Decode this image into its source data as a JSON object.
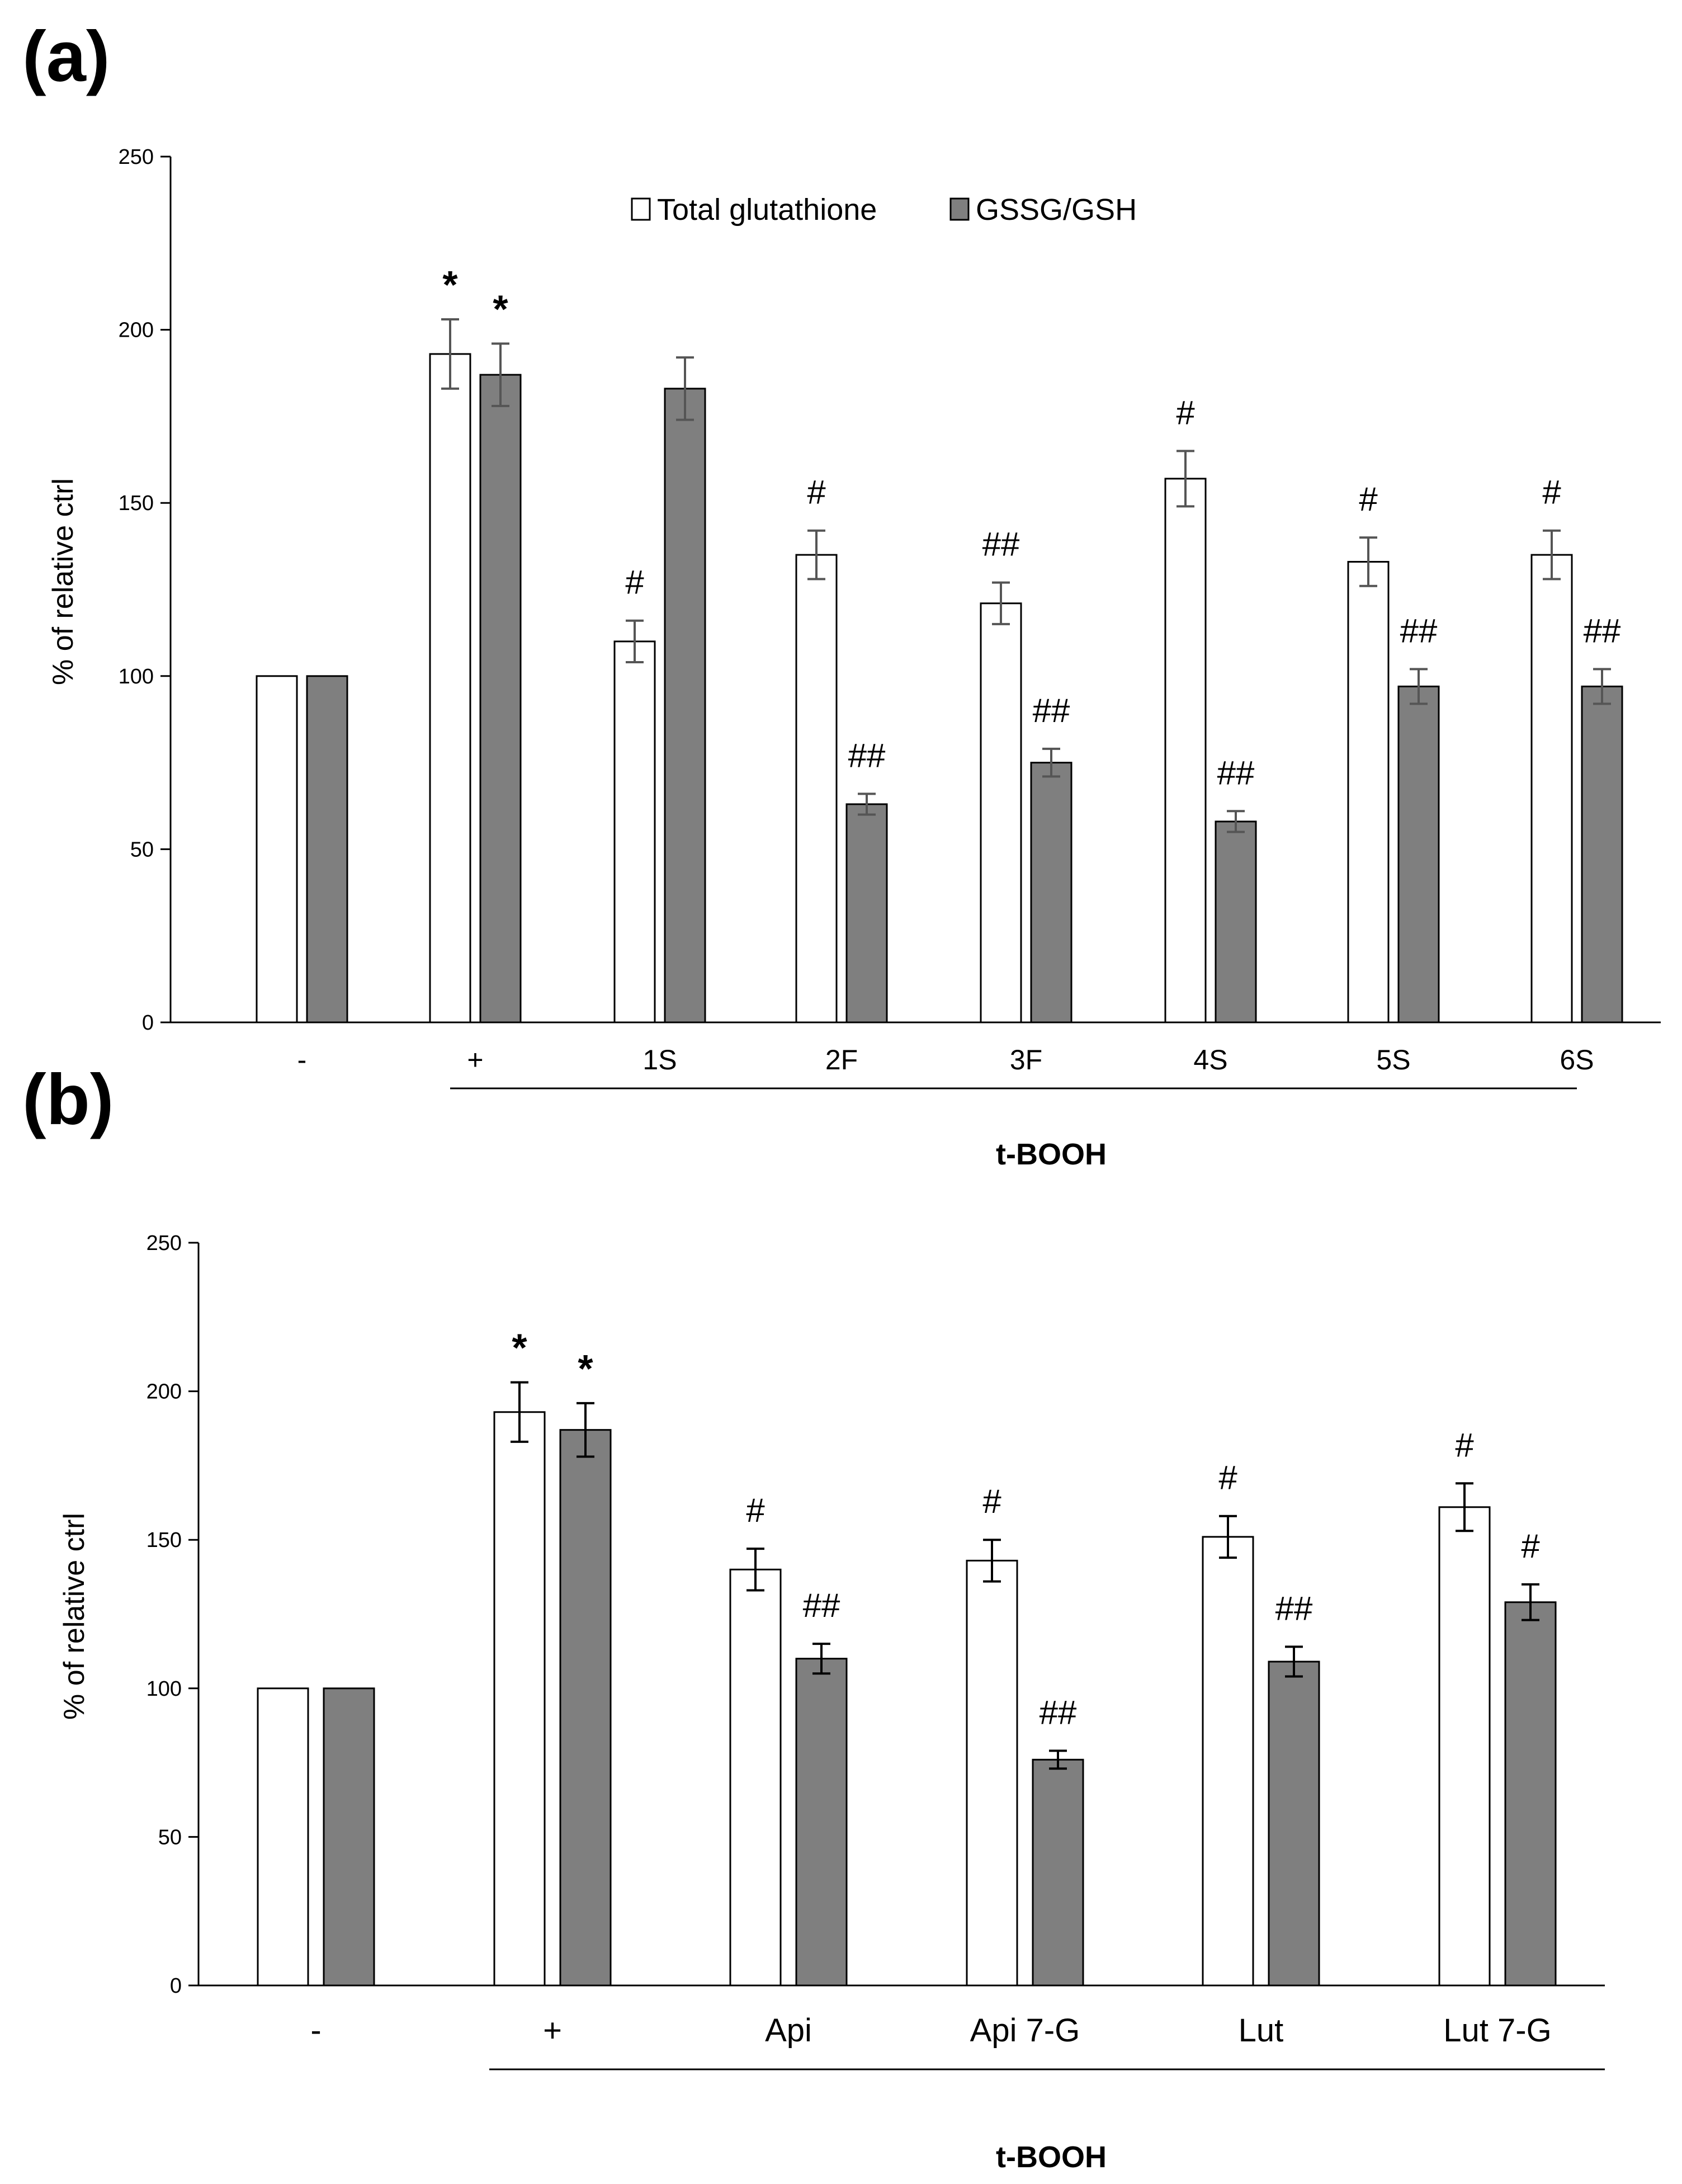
{
  "colors": {
    "total": "#ffffff",
    "gssg": "#7f7f7f",
    "edge": "#000000",
    "err_a": "#555555",
    "err_b": "#000000"
  },
  "chart_data": [
    {
      "panel": "(a)",
      "type": "bar",
      "ylabel": "% of relative ctrl",
      "ylim": [
        0,
        250
      ],
      "yticks": [
        "0",
        "50",
        "100",
        "150",
        "200",
        "250"
      ],
      "categories": [
        "-",
        "+",
        "1S",
        "2F",
        "3F",
        "4S",
        "5S",
        "6S"
      ],
      "group_label": "t-BOOH",
      "legend": [
        "Total glutathione",
        "GSSG/GSH"
      ],
      "series": [
        {
          "name": "Total glutathione",
          "values": [
            100,
            193,
            110,
            135,
            121,
            157,
            133,
            135
          ],
          "errors": [
            0,
            10,
            6,
            7,
            6,
            8,
            7,
            7
          ],
          "annotations": [
            "",
            "*",
            "#",
            "#",
            "##",
            "#",
            "#",
            "#"
          ]
        },
        {
          "name": "GSSG/GSH",
          "values": [
            100,
            187,
            183,
            63,
            75,
            58,
            97,
            97
          ],
          "errors": [
            0,
            9,
            9,
            3,
            4,
            3,
            5,
            5
          ],
          "annotations": [
            "",
            "*",
            "",
            "##",
            "##",
            "##",
            "##",
            "##"
          ]
        }
      ]
    },
    {
      "panel": "(b)",
      "type": "bar",
      "ylabel": "% of relative ctrl",
      "ylim": [
        0,
        250
      ],
      "yticks": [
        "0",
        "50",
        "100",
        "150",
        "200",
        "250"
      ],
      "categories": [
        "-",
        "+",
        "Api",
        "Api 7-G",
        "Lut",
        "Lut 7-G"
      ],
      "group_label": "t-BOOH",
      "series": [
        {
          "name": "Total glutathione",
          "values": [
            100,
            193,
            140,
            143,
            151,
            161
          ],
          "errors": [
            0,
            10,
            7,
            7,
            7,
            8
          ],
          "annotations": [
            "",
            "*",
            "#",
            "#",
            "#",
            "#"
          ]
        },
        {
          "name": "GSSG/GSH",
          "values": [
            100,
            187,
            110,
            76,
            109,
            129
          ],
          "errors": [
            0,
            9,
            5,
            3,
            5,
            6
          ],
          "annotations": [
            "",
            "*",
            "##",
            "##",
            "##",
            "#"
          ]
        }
      ]
    }
  ]
}
